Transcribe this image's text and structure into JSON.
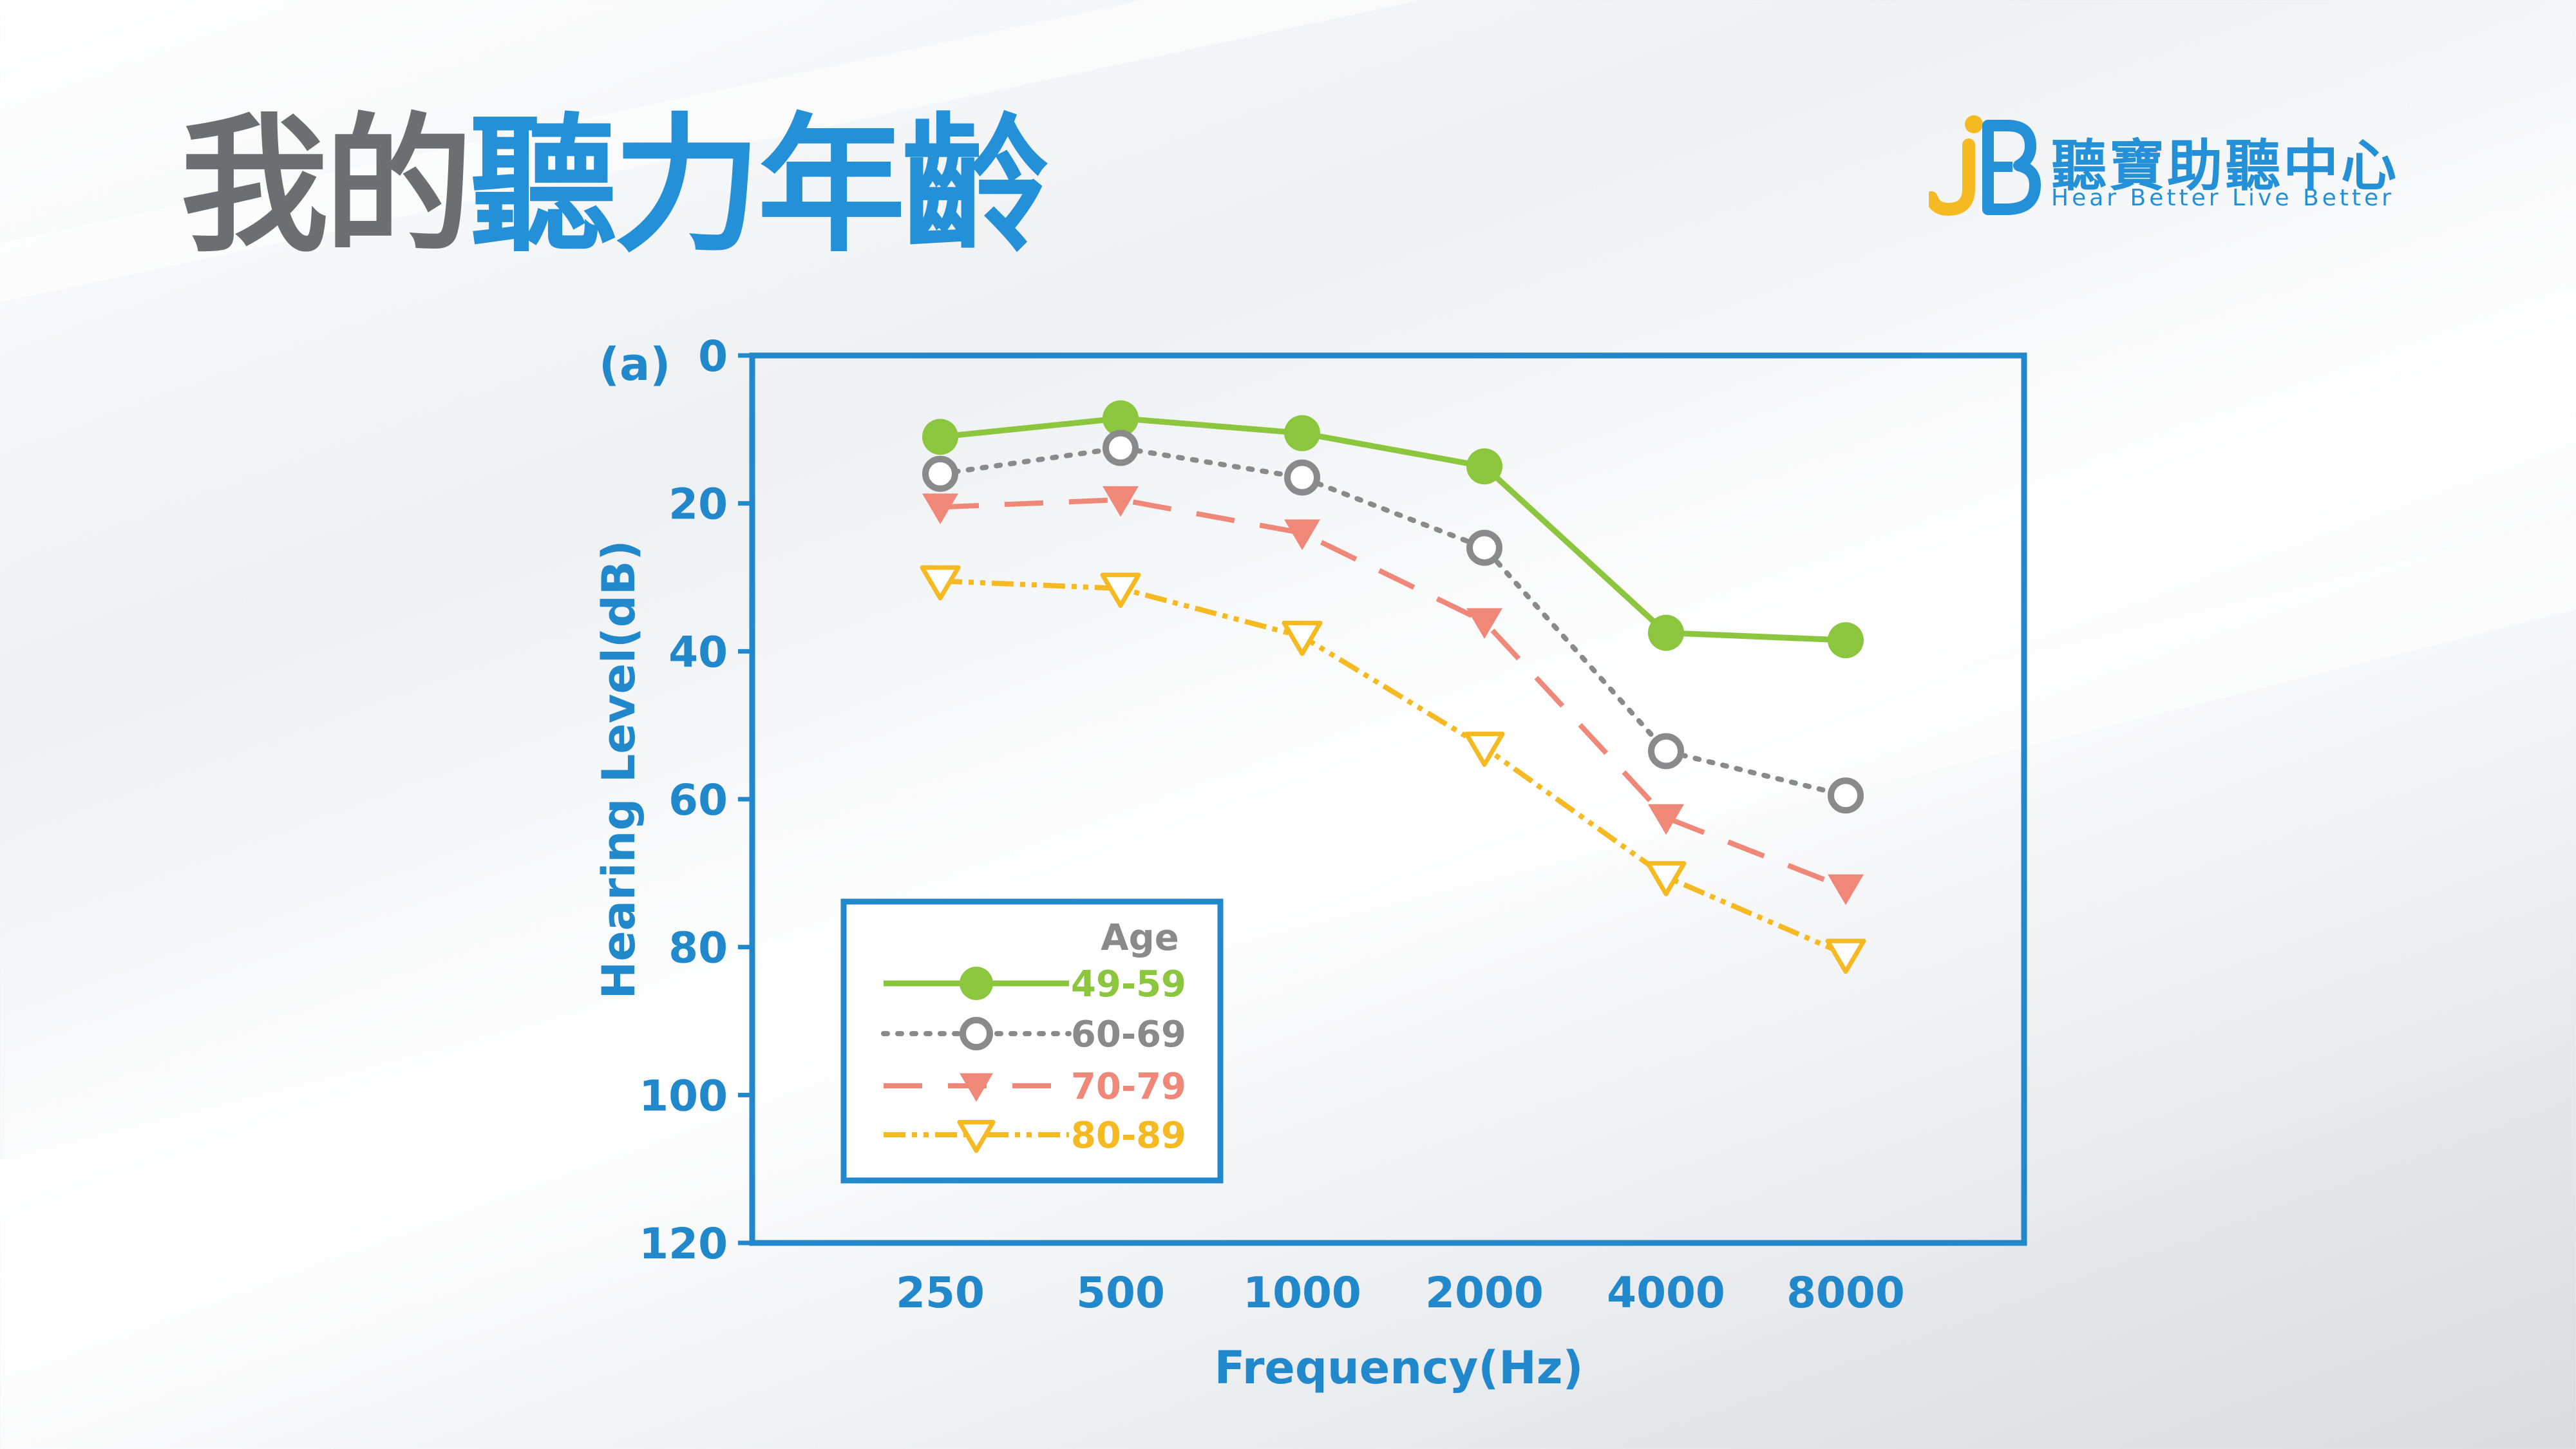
{
  "page": {
    "title_part1": "我的",
    "title_part2": "聽力年齡"
  },
  "logo": {
    "name": "聽寶助聽中心",
    "slogan": "Hear Better  Live Better",
    "colors": {
      "blue": "#2390d8",
      "yellow": "#f5b921"
    }
  },
  "chart_data": {
    "type": "line",
    "panel_label": "(a)",
    "xlabel": "Frequency(Hz)",
    "ylabel": "Hearing Level(dB)",
    "categories": [
      "250",
      "500",
      "1000",
      "2000",
      "4000",
      "8000"
    ],
    "yticks": [
      "0",
      "20",
      "40",
      "60",
      "80",
      "100",
      "120"
    ],
    "ylim": [
      0,
      120
    ],
    "y_inverted": true,
    "grid": false,
    "legend": {
      "title": "Age",
      "placement": "bottom-left"
    },
    "series": [
      {
        "name": "49-59",
        "values": [
          11,
          8.5,
          10.5,
          15,
          37.5,
          38.5
        ],
        "color": "#8cc63f",
        "style": "solid",
        "marker": "filled-circle"
      },
      {
        "name": "60-69",
        "values": [
          16,
          12.5,
          16.5,
          26,
          53.5,
          59.5
        ],
        "color": "#8a8a8c",
        "style": "dotted",
        "marker": "open-circle"
      },
      {
        "name": "70-79",
        "values": [
          20.5,
          19.5,
          24,
          36,
          62.5,
          72
        ],
        "color": "#f0887a",
        "style": "dashed",
        "marker": "filled-triangle-down"
      },
      {
        "name": "80-89",
        "values": [
          30.5,
          31.5,
          38,
          53,
          70.5,
          81
        ],
        "color": "#f5b921",
        "style": "dash-dot-dot",
        "marker": "open-triangle-down"
      }
    ],
    "colors": {
      "axis": "#2288cc",
      "legend_title": "#8a8a8c"
    }
  }
}
